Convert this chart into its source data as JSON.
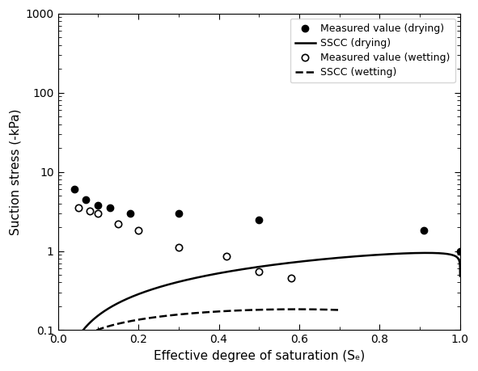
{
  "title": "",
  "xlabel": "Effective degree of saturation (Sₑ)",
  "ylabel": "Suction stress (-kPa)",
  "xlim": [
    0,
    1.0
  ],
  "ylim": [
    0.1,
    1000
  ],
  "drying_measured_x": [
    0.04,
    0.07,
    0.1,
    0.13,
    0.18,
    0.3,
    0.5,
    0.91,
    1.0
  ],
  "drying_measured_y": [
    6.0,
    4.5,
    3.8,
    3.5,
    3.0,
    3.0,
    2.5,
    1.8,
    1.0
  ],
  "wetting_measured_x": [
    0.05,
    0.08,
    0.1,
    0.15,
    0.2,
    0.3,
    0.42,
    0.5,
    0.58
  ],
  "wetting_measured_y": [
    3.5,
    3.2,
    3.0,
    2.2,
    1.8,
    1.1,
    0.85,
    0.55,
    0.45
  ],
  "legend_labels": [
    "Measured value (drying)",
    "SSCC (drying)",
    "Measured value (wetting)",
    "SSCC (wetting)"
  ],
  "drying_alpha": 0.8,
  "drying_n": 12.0,
  "drying_scale": 3.0,
  "wetting_alpha": 3.5,
  "wetting_n": 2.8,
  "wetting_scale": 3.0,
  "line_color": "#000000",
  "background_color": "#ffffff",
  "marker_size": 6,
  "line_width": 1.8,
  "xlabel_fontsize": 11,
  "ylabel_fontsize": 11,
  "legend_fontsize": 9
}
